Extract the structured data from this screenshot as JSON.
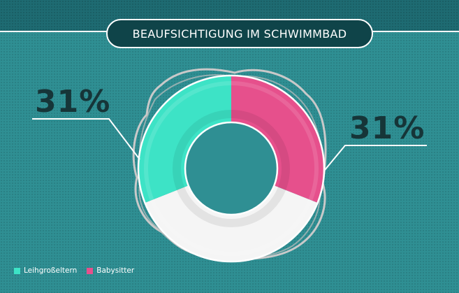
{
  "title": "BEAUFSICHTIGUNG IM SCHWIMMBAD",
  "chart_data": {
    "type": "pie",
    "variant": "donut",
    "total": 100,
    "slices": [
      {
        "name": "Leihgroßeltern",
        "value": 31,
        "label": "31%",
        "color": "#3de3c6"
      },
      {
        "name": "Babysitter",
        "value": 31,
        "label": "31%",
        "color": "#e6508c"
      }
    ],
    "remainder": {
      "value": 38,
      "color": "#f5f5f5"
    },
    "legend_position": "bottom-left"
  }
}
